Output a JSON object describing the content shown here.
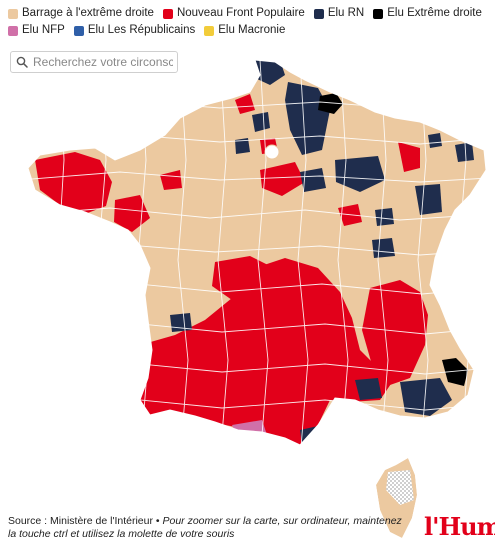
{
  "legend": [
    {
      "label": "Barrage à l'extrême droite",
      "color": "#ecc9a0"
    },
    {
      "label": "Nouveau Front Populaire",
      "color": "#e2001a"
    },
    {
      "label": "Elu RN",
      "color": "#1f2d4d"
    },
    {
      "label": "Elu Extrême droite",
      "color": "#000000"
    },
    {
      "label": "Elu NFP",
      "color": "#d070a8"
    },
    {
      "label": "Elu Les Républicains",
      "color": "#2f5fa8"
    },
    {
      "label": "Elu Macronie",
      "color": "#f2cc3a"
    }
  ],
  "search": {
    "placeholder": "Recherchez votre circonscription"
  },
  "map": {
    "region": "France métropolitaine",
    "inset": "Corse"
  },
  "footer": {
    "source": "Source : Ministère de l'Intérieur • ",
    "hint": "Pour zoomer sur la carte, sur ordinateur, maintenez la touche ctrl et utilisez la molette de votre souris"
  },
  "brand": {
    "logo": "l'Humanité"
  }
}
